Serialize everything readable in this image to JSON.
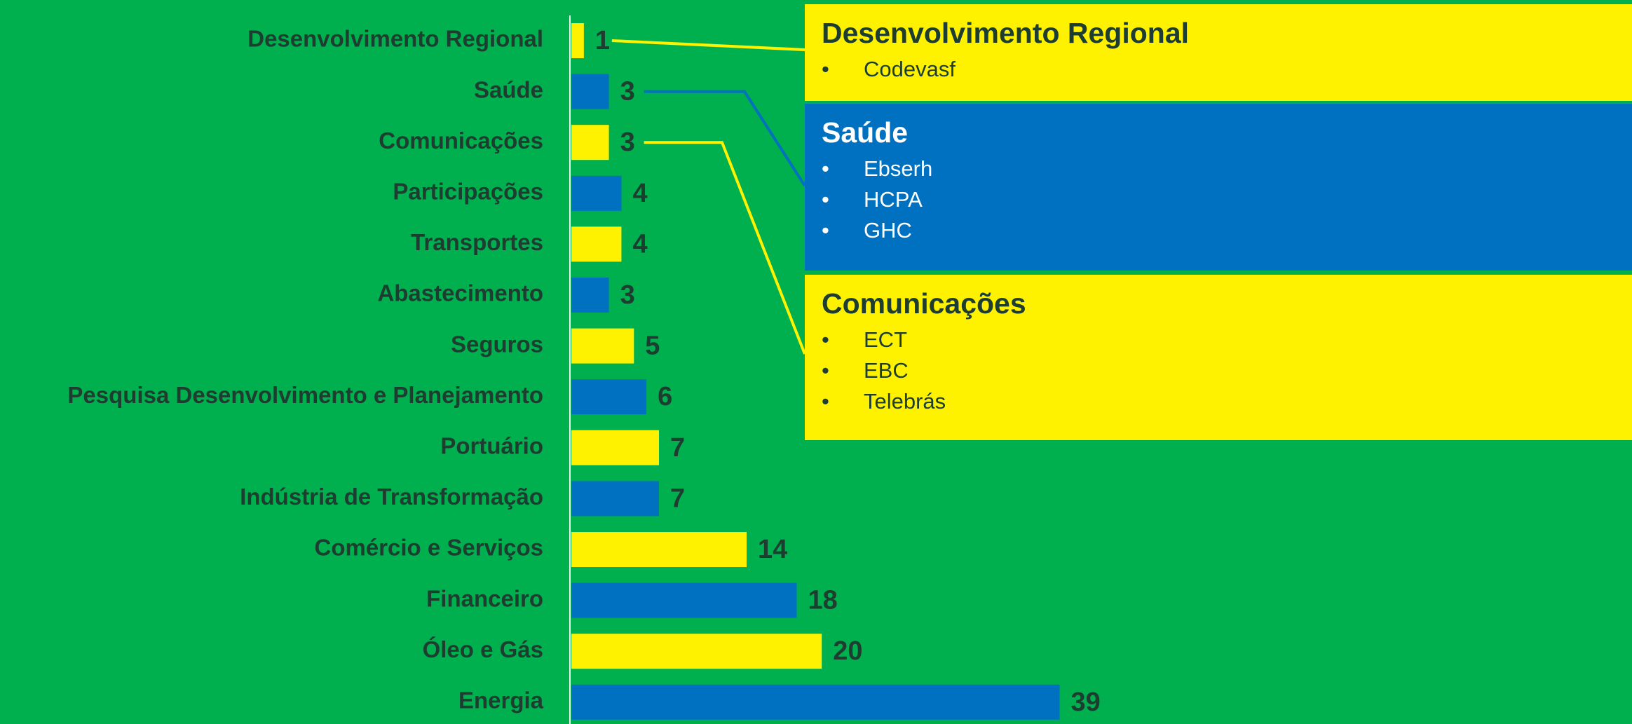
{
  "chart_data": {
    "type": "bar",
    "orientation": "horizontal",
    "categories": [
      "Desenvolvimento Regional",
      "Saúde",
      "Comunicações",
      "Participações",
      "Transportes",
      "Abastecimento",
      "Seguros",
      "Pesquisa Desenvolvimento e Planejamento",
      "Portuário",
      "Indústria de Transformação",
      "Comércio e Serviços",
      "Financeiro",
      "Óleo e Gás",
      "Energia"
    ],
    "values": [
      1,
      3,
      3,
      4,
      4,
      3,
      5,
      6,
      7,
      7,
      14,
      18,
      20,
      39
    ],
    "colors": [
      "#fff200",
      "#0070c0",
      "#fff200",
      "#0070c0",
      "#fff200",
      "#0070c0",
      "#fff200",
      "#0070c0",
      "#fff200",
      "#0070c0",
      "#fff200",
      "#0070c0",
      "#fff200",
      "#0070c0"
    ]
  },
  "callouts": [
    {
      "title": "Desenvolvimento Regional",
      "items": [
        "Codevasf"
      ],
      "color": "#fff200",
      "text_color": "#1c3d30"
    },
    {
      "title": "Saúde",
      "items": [
        "Ebserh",
        "HCPA",
        "GHC"
      ],
      "color": "#0070c0",
      "text_color": "#ffffff"
    },
    {
      "title": "Comunicações",
      "items": [
        "ECT",
        "EBC",
        "Telebrás"
      ],
      "color": "#fff200",
      "text_color": "#1c3d30"
    }
  ]
}
